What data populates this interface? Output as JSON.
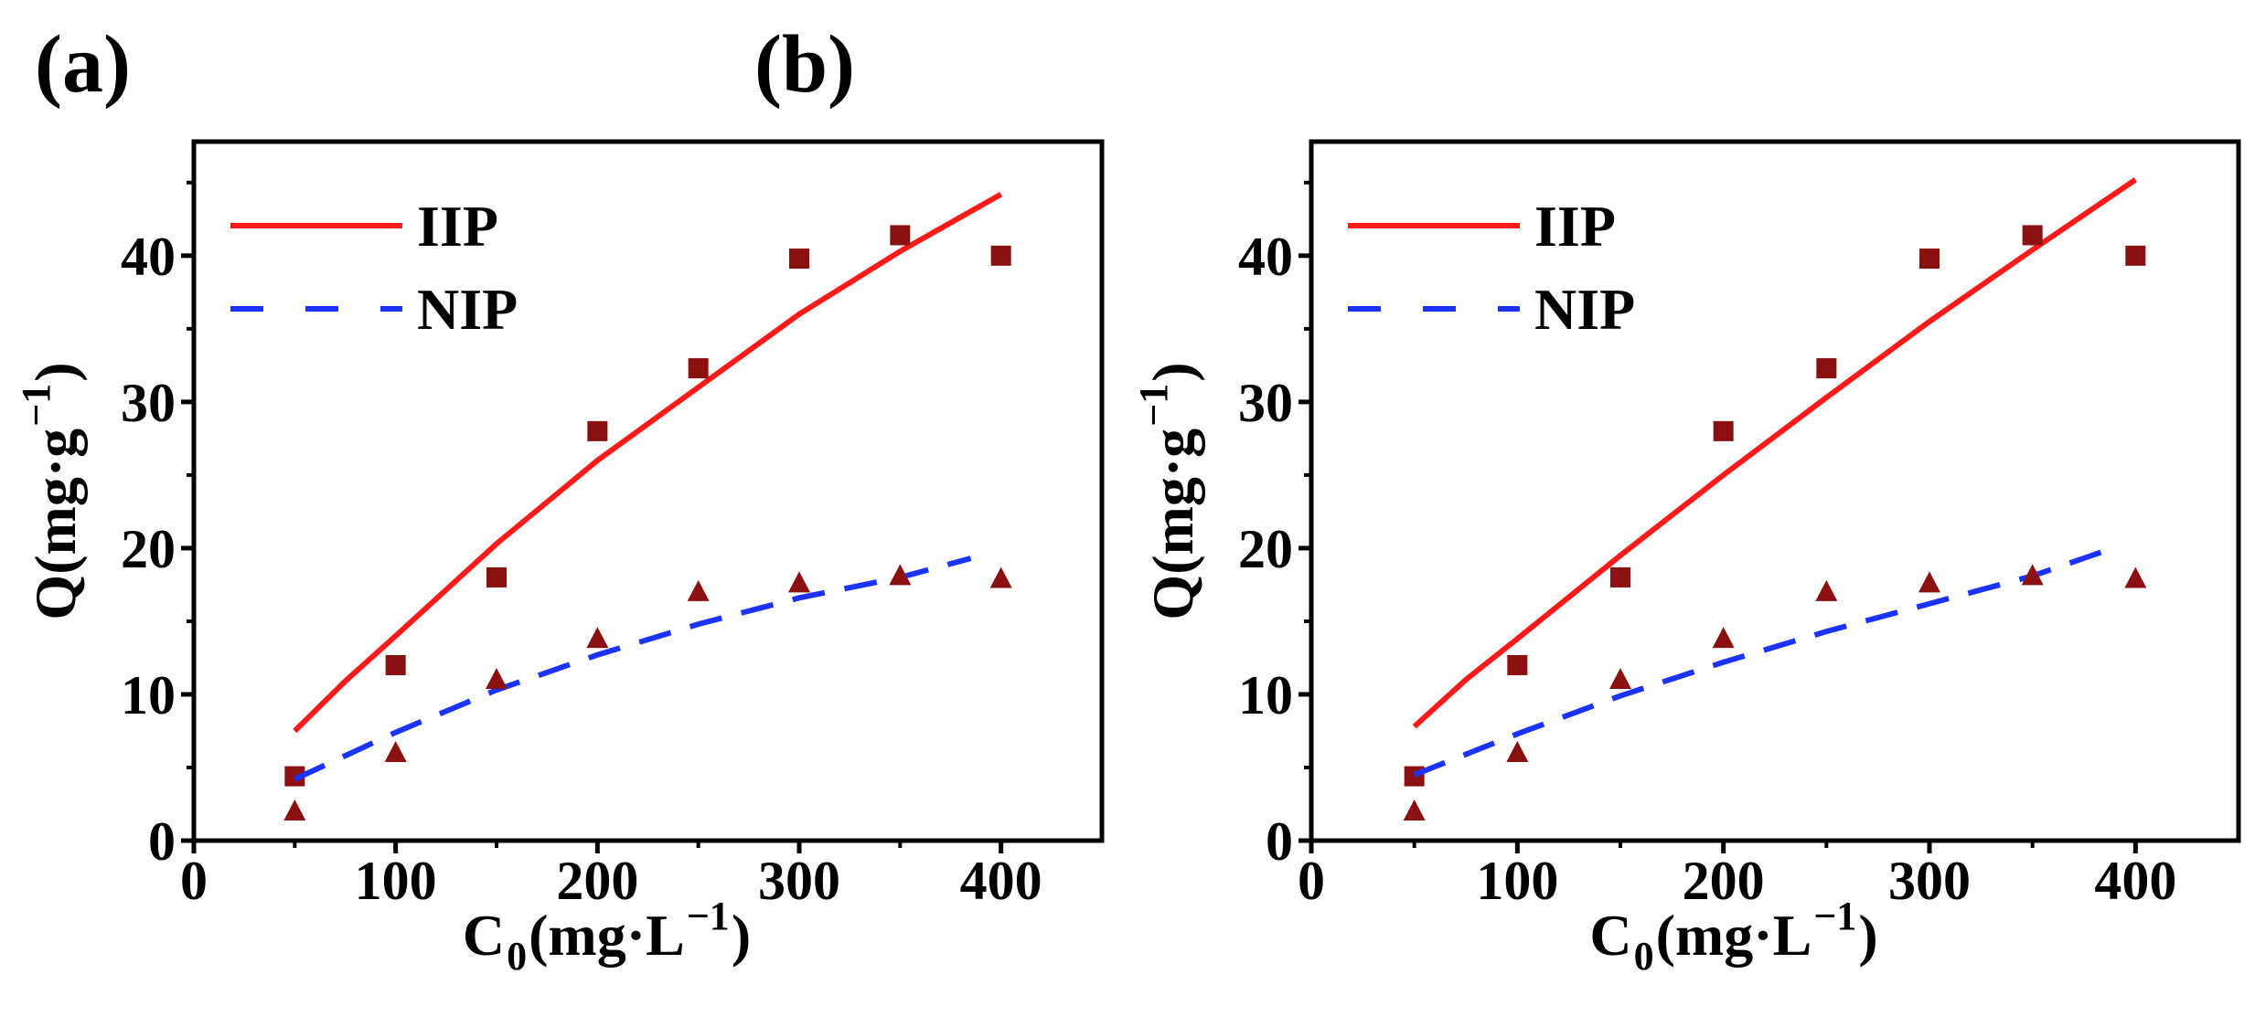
{
  "chart_data": [
    {
      "type": "scatter",
      "panel_label": "(a)",
      "xlabel_main": "C",
      "xlabel_sub": "0",
      "xlabel_rest": "(mg·L",
      "xlabel_sup": "−1",
      "xlabel_close": ")",
      "ylabel_main": "Q(mg·g",
      "ylabel_sup": "−1",
      "ylabel_close": ")",
      "xlim": [
        0,
        450
      ],
      "ylim": [
        0,
        47.8
      ],
      "xticks": [
        0,
        100,
        200,
        300,
        400
      ],
      "yticks": [
        0,
        10,
        20,
        30,
        40
      ],
      "legend_position": "top-left",
      "series": [
        {
          "name": "IIP",
          "marker": "square",
          "color": "#8B1010",
          "x": [
            50,
            100,
            150,
            200,
            250,
            300,
            350,
            400
          ],
          "y": [
            4.4,
            12,
            18,
            28,
            32.3,
            39.8,
            41.4,
            40
          ],
          "fit": {
            "color": "#FF1A1A",
            "style": "solid",
            "x": [
              50,
              75,
              100,
              150,
              200,
              250,
              300,
              350,
              400
            ],
            "y": [
              7.5,
              10.9,
              14,
              20.3,
              26,
              31,
              36,
              40.3,
              44.2
            ]
          }
        },
        {
          "name": "NIP",
          "marker": "triangle",
          "color": "#8B1010",
          "x": [
            50,
            100,
            150,
            200,
            250,
            300,
            350,
            400
          ],
          "y": [
            2,
            6,
            11,
            13.8,
            17,
            17.6,
            18.1,
            17.9
          ],
          "fit": {
            "color": "#1A33FF",
            "style": "dashed",
            "x": [
              50,
              100,
              150,
              200,
              250,
              300,
              350,
              385
            ],
            "y": [
              4.2,
              7.4,
              10.3,
              12.7,
              14.8,
              16.6,
              18,
              19.3
            ]
          }
        }
      ]
    },
    {
      "type": "scatter",
      "panel_label": "(b)",
      "xlabel_main": "C",
      "xlabel_sub": "0",
      "xlabel_rest": "(mg·L",
      "xlabel_sup": "−1",
      "xlabel_close": ")",
      "ylabel_main": "Q(mg·g",
      "ylabel_sup": "−1",
      "ylabel_close": ")",
      "xlim": [
        0,
        450
      ],
      "ylim": [
        0,
        47.8
      ],
      "xticks": [
        0,
        100,
        200,
        300,
        400
      ],
      "yticks": [
        0,
        10,
        20,
        30,
        40
      ],
      "legend_position": "top-left",
      "series": [
        {
          "name": "IIP",
          "marker": "square",
          "color": "#8B1010",
          "x": [
            50,
            100,
            150,
            200,
            250,
            300,
            350,
            400
          ],
          "y": [
            4.4,
            12,
            18,
            28,
            32.3,
            39.8,
            41.4,
            40
          ],
          "fit": {
            "color": "#FF1A1A",
            "style": "solid",
            "x": [
              50,
              75,
              100,
              150,
              200,
              250,
              300,
              350,
              400
            ],
            "y": [
              7.8,
              11,
              13.8,
              19.5,
              25,
              30.3,
              35.5,
              40.4,
              45.2
            ]
          }
        },
        {
          "name": "NIP",
          "marker": "triangle",
          "color": "#8B1010",
          "x": [
            50,
            100,
            150,
            200,
            250,
            300,
            350,
            400
          ],
          "y": [
            2,
            6,
            11,
            13.8,
            17,
            17.6,
            18.1,
            17.9
          ],
          "fit": {
            "color": "#1A33FF",
            "style": "dashed",
            "x": [
              50,
              100,
              150,
              200,
              250,
              300,
              350,
              385
            ],
            "y": [
              4.5,
              7.3,
              9.9,
              12.2,
              14.3,
              16.2,
              18.1,
              19.8
            ]
          }
        }
      ]
    }
  ]
}
